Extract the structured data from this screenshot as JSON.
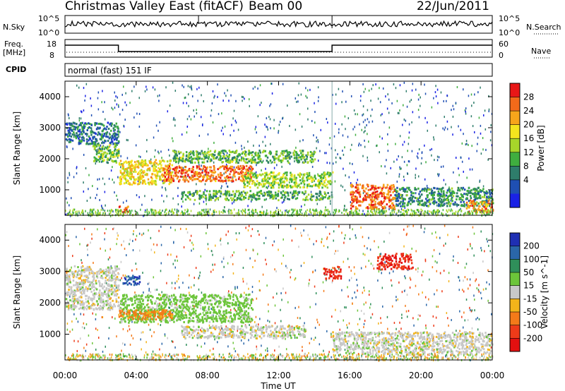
{
  "header": {
    "station": "Christmas Valley East (fitACF)",
    "beam": "Beam 00",
    "date": "22/Jun/2011"
  },
  "status_panels": {
    "nsky_label": "N.Sky",
    "nsky_ticks": [
      "10^5",
      "10^0"
    ],
    "nsearch_label": "N.Search",
    "nsearch_ticks": [
      "10^5",
      "10^0"
    ],
    "freq_label": "Freq.",
    "freq_unit": "[MHz]",
    "freq_ticks": [
      "18",
      "8"
    ],
    "nave_label": "Nave",
    "nave_ticks": [
      "60",
      "0"
    ],
    "cpid_label": "CPID",
    "cpid_value": "normal (fast) 151 IF"
  },
  "chart_data": [
    {
      "type": "heatmap",
      "name": "power",
      "ylabel": "Slant Range [km]",
      "xlabel": "",
      "xlim": [
        "00:00",
        "00:00"
      ],
      "ylim": [
        180,
        4500
      ],
      "yticks": [
        1000,
        2000,
        3000,
        4000
      ],
      "colorbar": {
        "label": "Power [dB]",
        "ticks": [
          4,
          8,
          12,
          16,
          20,
          24,
          28
        ],
        "colors": [
          "#1a22e6",
          "#1f4fb3",
          "#2e7d6b",
          "#3fae3f",
          "#a7d62a",
          "#f4e51e",
          "#f6a51b",
          "#f26a1a",
          "#e81717"
        ]
      },
      "regions": [
        {
          "t": [
            0.0,
            3.0
          ],
          "r": [
            2500,
            3200
          ],
          "level": 8
        },
        {
          "t": [
            1.5,
            3.0
          ],
          "r": [
            1900,
            2500
          ],
          "level": 14
        },
        {
          "t": [
            3.0,
            6.0
          ],
          "r": [
            1200,
            2000
          ],
          "level": 20
        },
        {
          "t": [
            5.5,
            10.5
          ],
          "r": [
            1300,
            1800
          ],
          "level": 26
        },
        {
          "t": [
            6.0,
            14.0
          ],
          "r": [
            1900,
            2300
          ],
          "level": 13
        },
        {
          "t": [
            6.5,
            15.0
          ],
          "r": [
            700,
            1000
          ],
          "level": 12
        },
        {
          "t": [
            10.0,
            15.0
          ],
          "r": [
            1100,
            1600
          ],
          "level": 16
        },
        {
          "t": [
            16.0,
            18.5
          ],
          "r": [
            400,
            1200
          ],
          "level": 27
        },
        {
          "t": [
            18.5,
            24.0
          ],
          "r": [
            500,
            1100
          ],
          "level": 10
        },
        {
          "t": [
            22.5,
            24.0
          ],
          "r": [
            300,
            700
          ],
          "level": 25
        },
        {
          "t": [
            3.0,
            3.5
          ],
          "r": [
            300,
            500
          ],
          "level": 28
        }
      ]
    },
    {
      "type": "heatmap",
      "name": "velocity",
      "ylabel": "Slant Range [km]",
      "xlabel": "Time UT",
      "xticks": [
        "00:00",
        "04:00",
        "08:00",
        "12:00",
        "16:00",
        "20:00",
        "00:00"
      ],
      "ylim": [
        180,
        4500
      ],
      "yticks": [
        1000,
        2000,
        3000,
        4000
      ],
      "colorbar": {
        "label": "Velocity [m s^-1]",
        "ticks": [
          200,
          100,
          50,
          15,
          -15,
          -50,
          -100,
          -200
        ],
        "colors": [
          "#1f2fb3",
          "#2a66a8",
          "#2f8f5a",
          "#6cc53a",
          "#c8c8c8",
          "#f3b41a",
          "#f47a19",
          "#ee3b19",
          "#e31010"
        ]
      },
      "regions": [
        {
          "t": [
            0.0,
            3.0
          ],
          "r": [
            1800,
            3200
          ],
          "v": 0
        },
        {
          "t": [
            3.0,
            10.5
          ],
          "r": [
            1400,
            2300
          ],
          "v": 30
        },
        {
          "t": [
            3.0,
            6.0
          ],
          "r": [
            1500,
            1800
          ],
          "v": -60
        },
        {
          "t": [
            6.5,
            13.5
          ],
          "r": [
            900,
            1300
          ],
          "v": 0
        },
        {
          "t": [
            15.0,
            24.0
          ],
          "r": [
            400,
            1100
          ],
          "v": 0
        },
        {
          "t": [
            14.5,
            15.5
          ],
          "r": [
            2800,
            3200
          ],
          "v": -200
        },
        {
          "t": [
            17.5,
            19.5
          ],
          "r": [
            3100,
            3600
          ],
          "v": -200
        },
        {
          "t": [
            3.2,
            4.2
          ],
          "r": [
            2600,
            2900
          ],
          "v": 200
        }
      ]
    }
  ]
}
